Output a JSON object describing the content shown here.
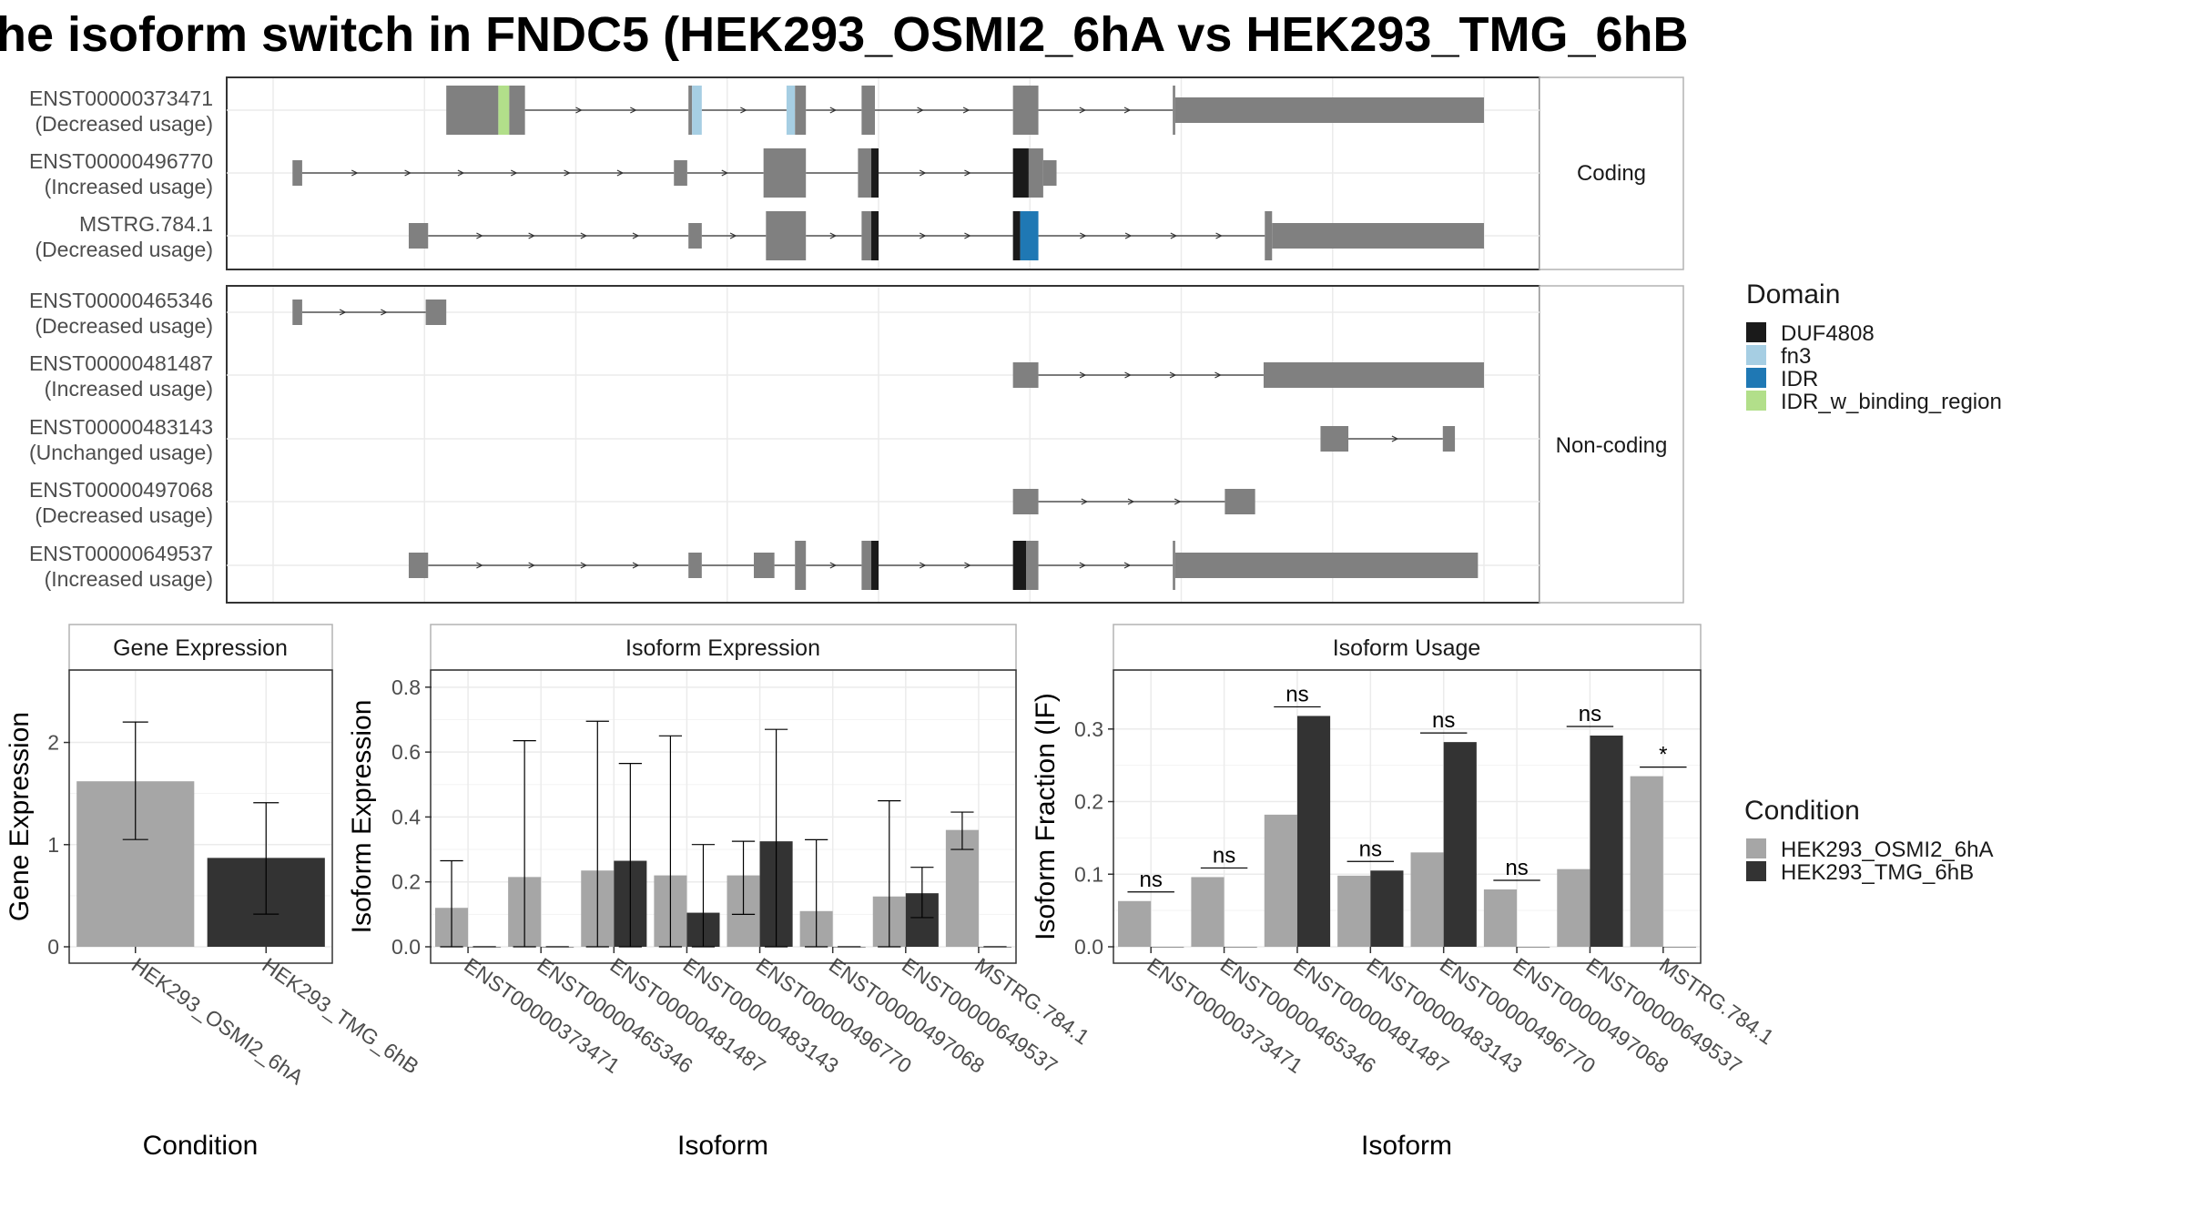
{
  "title": "he isoform switch in FNDC5 (HEK293_OSMI2_6hA vs HEK293_TMG_6hB",
  "colors": {
    "exon": "#808080",
    "cond_a": "#a6a6a6",
    "cond_b": "#333333",
    "grid": "#ebebeb",
    "domains": {
      "DUF4808": "#1a1a1a",
      "fn3": "#a6cee3",
      "IDR": "#1f78b4",
      "IDR_w_binding_region": "#b2df8a"
    }
  },
  "structure": {
    "coding_label": "Coding",
    "noncoding_label": "Non-coding",
    "coding": [
      {
        "id": "ENST00000373471",
        "usage": "(Decreased usage)",
        "exons": [
          [
            143,
            186,
            "cds"
          ],
          [
            186,
            195,
            "IDR_w_binding_region"
          ],
          [
            195,
            208,
            "cds"
          ],
          [
            343,
            346,
            "cds"
          ],
          [
            346,
            354,
            "fn3"
          ],
          [
            424,
            431,
            "fn3"
          ],
          [
            431,
            440,
            "cds"
          ],
          [
            486,
            497,
            "cds"
          ],
          [
            611,
            632,
            "cds"
          ],
          [
            743,
            745,
            "cds"
          ],
          [
            745,
            1000,
            "utr"
          ]
        ]
      },
      {
        "id": "ENST00000496770",
        "usage": "(Increased usage)",
        "exons": [
          [
            16,
            24,
            "utr"
          ],
          [
            331,
            342,
            "utr"
          ],
          [
            405,
            440,
            "cds"
          ],
          [
            483,
            494,
            "cds"
          ],
          [
            494,
            500,
            "DUF4808"
          ],
          [
            611,
            624,
            "DUF4808"
          ],
          [
            624,
            636,
            "cds"
          ],
          [
            636,
            647,
            "utr"
          ]
        ]
      },
      {
        "id": "MSTRG.784.1",
        "usage": "(Decreased usage)",
        "exons": [
          [
            112,
            128,
            "utr"
          ],
          [
            343,
            354,
            "utr"
          ],
          [
            407,
            440,
            "cds"
          ],
          [
            486,
            494,
            "cds"
          ],
          [
            494,
            500,
            "DUF4808"
          ],
          [
            611,
            617,
            "DUF4808"
          ],
          [
            617,
            632,
            "IDR"
          ],
          [
            819,
            825,
            "cds"
          ],
          [
            825,
            1000,
            "utr"
          ]
        ]
      }
    ],
    "noncoding": [
      {
        "id": "ENST00000465346",
        "usage": "(Decreased usage)",
        "exons": [
          [
            16,
            24,
            "nc"
          ],
          [
            126,
            143,
            "nc"
          ]
        ]
      },
      {
        "id": "ENST00000481487",
        "usage": "(Increased usage)",
        "exons": [
          [
            611,
            632,
            "nc"
          ],
          [
            818,
            1000,
            "nc"
          ]
        ]
      },
      {
        "id": "ENST00000483143",
        "usage": "(Unchanged usage)",
        "exons": [
          [
            865,
            888,
            "nc"
          ],
          [
            966,
            976,
            "nc"
          ]
        ]
      },
      {
        "id": "ENST00000497068",
        "usage": "(Decreased usage)",
        "exons": [
          [
            611,
            632,
            "nc"
          ],
          [
            786,
            811,
            "nc"
          ]
        ]
      },
      {
        "id": "ENST00000649537",
        "usage": "(Increased usage)",
        "exons": [
          [
            112,
            128,
            "utr"
          ],
          [
            343,
            354,
            "utr"
          ],
          [
            397,
            414,
            "utr"
          ],
          [
            431,
            440,
            "cds"
          ],
          [
            486,
            494,
            "cds"
          ],
          [
            494,
            500,
            "DUF4808"
          ],
          [
            611,
            622,
            "DUF4808"
          ],
          [
            622,
            632,
            "cds"
          ],
          [
            743,
            745,
            "cds"
          ],
          [
            745,
            995,
            "utr"
          ]
        ]
      }
    ]
  },
  "legend_domain": {
    "title": "Domain",
    "items": [
      "DUF4808",
      "fn3",
      "IDR",
      "IDR_w_binding_region"
    ]
  },
  "legend_condition": {
    "title": "Condition",
    "items": [
      "HEK293_OSMI2_6hA",
      "HEK293_TMG_6hB"
    ]
  },
  "chart_data": [
    {
      "type": "bar",
      "title": "Gene Expression",
      "xlabel": "Condition",
      "ylabel": "Gene Expression",
      "ylim": [
        0,
        2.7
      ],
      "yticks": [
        "0",
        "1",
        "2"
      ],
      "categories": [
        "HEK293_OSMI2_6hA",
        "HEK293_TMG_6hB"
      ],
      "values": [
        1.62,
        0.87
      ],
      "error_low": [
        1.05,
        0.32
      ],
      "error_high": [
        2.2,
        1.41
      ]
    },
    {
      "type": "bar",
      "title": "Isoform Expression",
      "xlabel": "Isoform",
      "ylabel": "Isoform Expression",
      "ylim": [
        0,
        0.85
      ],
      "yticks": [
        "0.0",
        "0.2",
        "0.4",
        "0.6",
        "0.8"
      ],
      "categories": [
        "ENST00000373471",
        "ENST00000465346",
        "ENST00000481487",
        "ENST00000483143",
        "ENST00000496770",
        "ENST00000497068",
        "ENST00000649537",
        "MSTRG.784.1"
      ],
      "series": [
        {
          "name": "HEK293_OSMI2_6hA",
          "values": [
            0.12,
            0.215,
            0.235,
            0.22,
            0.22,
            0.11,
            0.155,
            0.36
          ],
          "error_low": [
            0,
            0,
            0,
            0,
            0.1,
            0,
            0,
            0.3
          ],
          "error_high": [
            0.265,
            0.635,
            0.695,
            0.65,
            0.325,
            0.33,
            0.45,
            0.415
          ]
        },
        {
          "name": "HEK293_TMG_6hB",
          "values": [
            0,
            0,
            0.265,
            0.105,
            0.325,
            0,
            0.165,
            0
          ],
          "error_low": [
            0,
            0,
            0,
            0,
            0,
            0,
            0.09,
            0
          ],
          "error_high": [
            0,
            0,
            0.565,
            0.315,
            0.67,
            0,
            0.245,
            0
          ]
        }
      ]
    },
    {
      "type": "bar",
      "title": "Isoform Usage",
      "xlabel": "Isoform",
      "ylabel": "Isoform Fraction (IF)",
      "ylim": [
        0,
        0.38
      ],
      "yticks": [
        "0.0",
        "0.1",
        "0.2",
        "0.3"
      ],
      "categories": [
        "ENST00000373471",
        "ENST00000465346",
        "ENST00000481487",
        "ENST00000483143",
        "ENST00000496770",
        "ENST00000497068",
        "ENST00000649537",
        "MSTRG.784.1"
      ],
      "series": [
        {
          "name": "HEK293_OSMI2_6hA",
          "values": [
            0.063,
            0.096,
            0.182,
            0.098,
            0.13,
            0.079,
            0.107,
            0.235
          ]
        },
        {
          "name": "HEK293_TMG_6hB",
          "values": [
            0,
            0,
            0.318,
            0.105,
            0.282,
            0,
            0.291,
            0
          ]
        }
      ],
      "significance": [
        "ns",
        "ns",
        "ns",
        "ns",
        "ns",
        "ns",
        "ns",
        "*"
      ]
    }
  ]
}
